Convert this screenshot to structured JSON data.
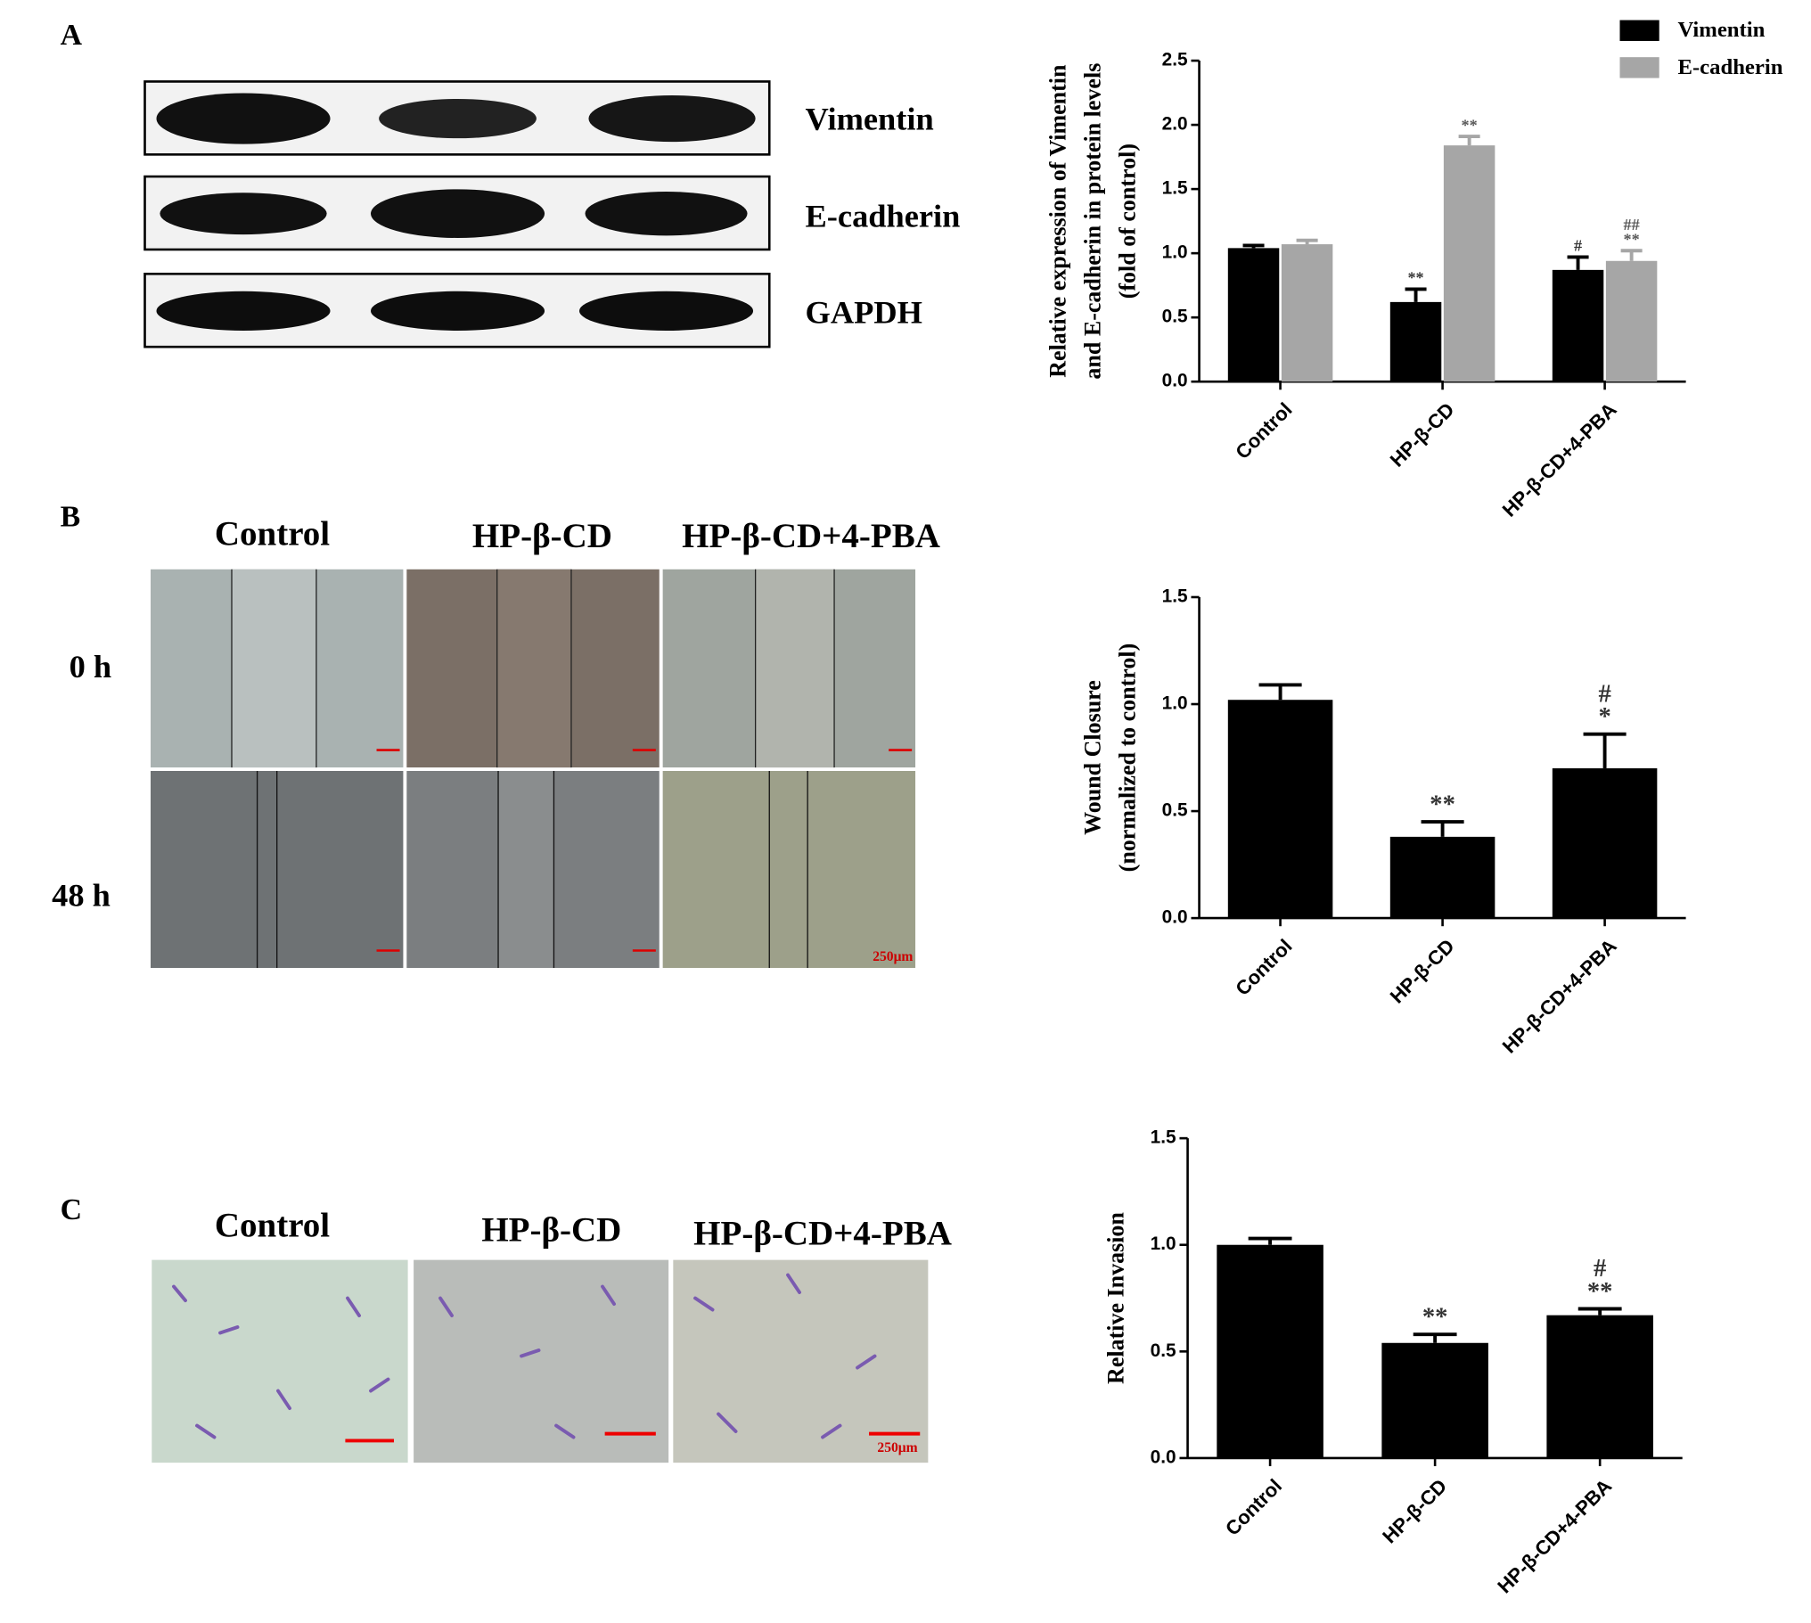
{
  "panels": {
    "A": {
      "label": "A",
      "blots": [
        "Vimentin",
        "E-cadherin",
        "GAPDH"
      ]
    },
    "B": {
      "label": "B",
      "columns": [
        "Control",
        "HP-β-CD",
        "HP-β-CD+4-PBA"
      ],
      "rows": [
        "0 h",
        "48 h"
      ],
      "scale": "250μm"
    },
    "C": {
      "label": "C",
      "columns": [
        "Control",
        "HP-β-CD",
        "HP-β-CD+4-PBA"
      ],
      "scale": "250μm"
    }
  },
  "chart_data": [
    {
      "type": "bar",
      "ylabel": [
        "Relative expression of Vimentin",
        "and E-cadherin in protein levels",
        "(fold of control)"
      ],
      "categories": [
        "Control",
        "HP-β-CD",
        "HP-β-CD+4-PBA"
      ],
      "series": [
        {
          "name": "Vimentin",
          "color": "#000000",
          "values": [
            1.04,
            0.62,
            0.87
          ],
          "errors": [
            0.02,
            0.1,
            0.1
          ],
          "significance": [
            [],
            [
              "**"
            ],
            [
              "#"
            ]
          ]
        },
        {
          "name": "E-cadherin",
          "color": "#a6a6a6",
          "values": [
            1.07,
            1.84,
            0.94
          ],
          "errors": [
            0.03,
            0.07,
            0.08
          ],
          "significance": [
            [],
            [
              "**"
            ],
            [
              "##",
              "**"
            ]
          ]
        }
      ],
      "ylim": [
        0,
        2.5
      ],
      "yticks": [
        {
          "value": 0,
          "label": "0.0"
        },
        {
          "value": 0.5,
          "label": "0.5"
        },
        {
          "value": 1,
          "label": "1.0"
        },
        {
          "value": 1.5,
          "label": "1.5"
        },
        {
          "value": 2,
          "label": "2.0"
        },
        {
          "value": 2.5,
          "label": "2.5"
        }
      ],
      "legend": "top-right"
    },
    {
      "type": "bar",
      "ylabel": [
        "Wound Closure",
        "(normalized to control)"
      ],
      "categories": [
        "Control",
        "HP-β-CD",
        "HP-β-CD+4-PBA"
      ],
      "values": [
        1.02,
        0.38,
        0.7
      ],
      "errors": [
        0.07,
        0.07,
        0.16
      ],
      "significance": [
        [],
        [
          "**"
        ],
        [
          "#",
          "*"
        ]
      ],
      "color": "#000000",
      "ylim": [
        0,
        1.5
      ],
      "yticks": [
        {
          "value": 0,
          "label": "0.0"
        },
        {
          "value": 0.5,
          "label": "0.5"
        },
        {
          "value": 1,
          "label": "1.0"
        },
        {
          "value": 1.5,
          "label": "1.5"
        }
      ]
    },
    {
      "type": "bar",
      "ylabel": [
        "Relative Invasion"
      ],
      "categories": [
        "Control",
        "HP-β-CD",
        "HP-β-CD+4-PBA"
      ],
      "values": [
        1.0,
        0.54,
        0.67
      ],
      "errors": [
        0.03,
        0.04,
        0.03
      ],
      "significance": [
        [],
        [
          "**"
        ],
        [
          "#",
          "**"
        ]
      ],
      "color": "#000000",
      "ylim": [
        0,
        1.5
      ],
      "yticks": [
        {
          "value": 0,
          "label": "0.0"
        },
        {
          "value": 0.5,
          "label": "0.5"
        },
        {
          "value": 1,
          "label": "1.0"
        },
        {
          "value": 1.5,
          "label": "1.5"
        }
      ]
    }
  ]
}
